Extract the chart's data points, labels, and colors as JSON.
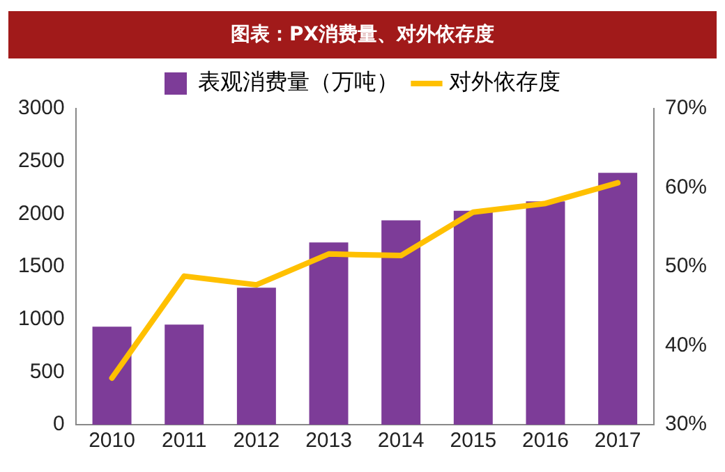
{
  "chart_data": {
    "type": "bar",
    "title": "图表：PX消费量、对外依存度",
    "categories": [
      "2010",
      "2011",
      "2012",
      "2013",
      "2014",
      "2015",
      "2016",
      "2017"
    ],
    "series": [
      {
        "name": "表观消费量（万吨）",
        "color": "#7d3c98",
        "values": [
          930,
          950,
          1300,
          1730,
          1940,
          2030,
          2120,
          2390
        ]
      },
      {
        "name": "对外依存度",
        "type": "line",
        "axis": "y2",
        "color": "#ffc000",
        "values": [
          35.9,
          48.8,
          47.7,
          51.6,
          51.4,
          56.9,
          58.0,
          60.6
        ]
      }
    ],
    "ylim": [
      0,
      3000
    ],
    "yticks": [
      0,
      500,
      1000,
      1500,
      2000,
      2500,
      3000
    ],
    "y2lim": [
      30,
      70
    ],
    "y2ticks": [
      {
        "value": 30,
        "label": "30%"
      },
      {
        "value": 40,
        "label": "40%"
      },
      {
        "value": 50,
        "label": "50%"
      },
      {
        "value": 60,
        "label": "60%"
      },
      {
        "value": 70,
        "label": "70%"
      }
    ],
    "grid": false,
    "legend": "top",
    "marker": "none",
    "line_style": "solid"
  }
}
